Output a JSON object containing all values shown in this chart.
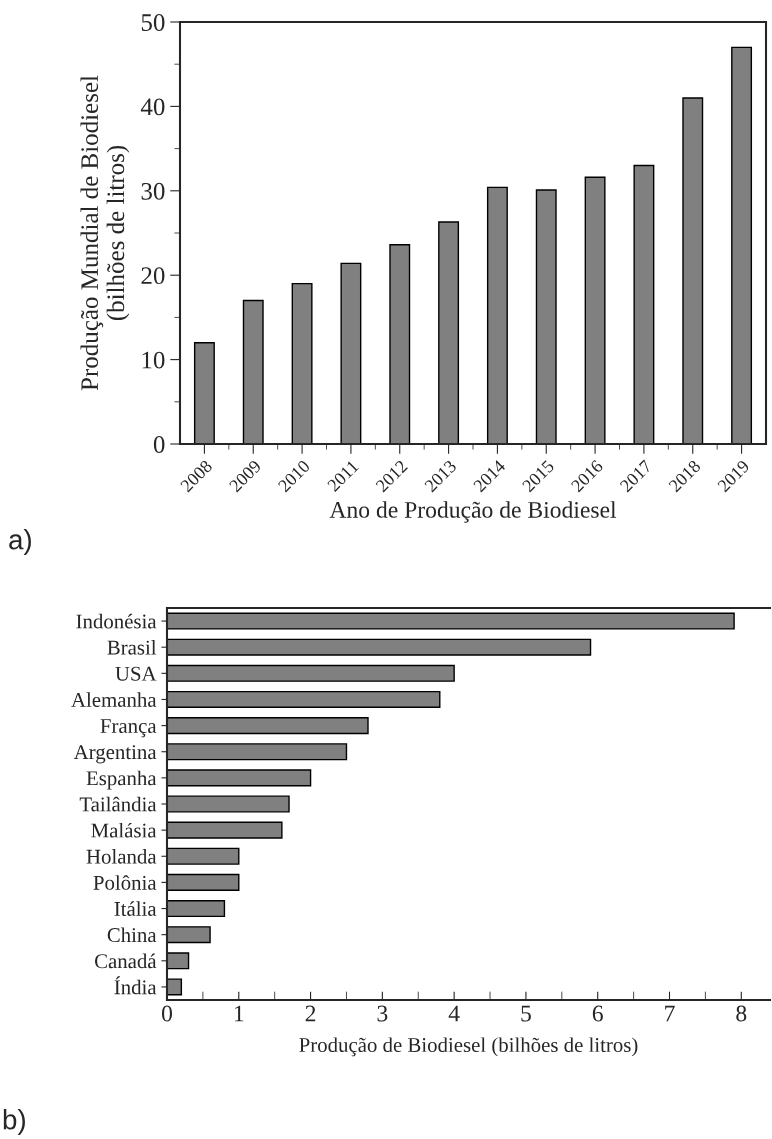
{
  "chart_data": [
    {
      "type": "bar",
      "xlabel": "Ano de Produção de Biodiesel",
      "ylabel": "Produção Mundial de Biodiesel\n(bilhões de litros)",
      "categories": [
        "2008",
        "2009",
        "2010",
        "2011",
        "2012",
        "2013",
        "2014",
        "2015",
        "2016",
        "2017",
        "2018",
        "2019"
      ],
      "values": [
        12,
        17,
        19,
        21.4,
        23.6,
        26.3,
        30.4,
        30.1,
        31.6,
        33,
        41,
        47
      ],
      "color": "#808080",
      "ylim": [
        0,
        50
      ],
      "yticks": [
        0,
        10,
        20,
        30,
        40,
        50
      ],
      "grid": false,
      "annotations": [
        "a)"
      ]
    },
    {
      "type": "bar",
      "orientation": "horizontal",
      "xlabel": "Produção de Biodiesel (bilhões de litros)",
      "categories": [
        "Indonésia",
        "Brasil",
        "USA",
        "Alemanha",
        "França",
        "Argentina",
        "Espanha",
        "Tailândia",
        "Malásia",
        "Holanda",
        "Polônia",
        "Itália",
        "China",
        "Canadá",
        "Índia"
      ],
      "values": [
        7.9,
        5.9,
        4.0,
        3.8,
        2.8,
        2.5,
        2.0,
        1.7,
        1.6,
        1.0,
        1.0,
        0.8,
        0.6,
        0.3,
        0.2
      ],
      "color": "#808080",
      "xlim": [
        0,
        8.4
      ],
      "xticks": [
        0,
        1,
        2,
        3,
        4,
        5,
        6,
        7,
        8
      ],
      "grid": false,
      "annotations": [
        "b)"
      ]
    }
  ]
}
